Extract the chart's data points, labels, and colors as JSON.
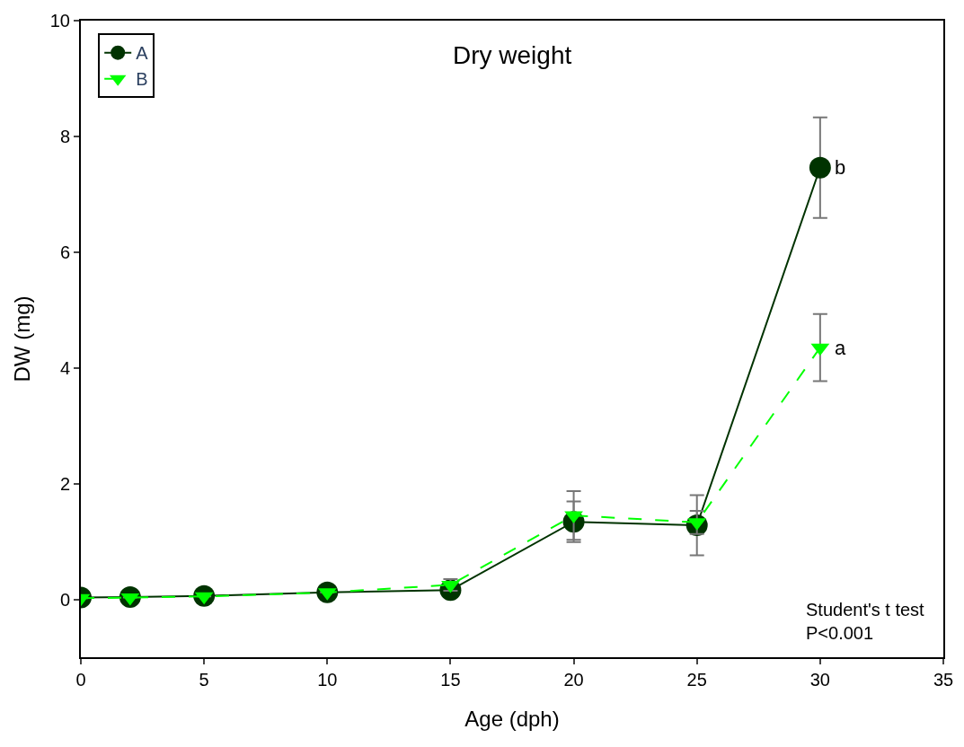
{
  "chart_data": {
    "type": "line",
    "title": "Dry weight",
    "xlabel": "Age (dph)",
    "ylabel": "DW (mg)",
    "x": [
      0,
      2,
      5,
      10,
      15,
      20,
      25,
      30
    ],
    "series": [
      {
        "name": "A",
        "color": "#003300",
        "marker": "circle",
        "line_style": "solid",
        "values": [
          0.03,
          0.04,
          0.06,
          0.12,
          0.16,
          1.34,
          1.28,
          7.46
        ],
        "errors": [
          null,
          null,
          null,
          null,
          null,
          0.35,
          0.52,
          0.87
        ]
      },
      {
        "name": "B",
        "color": "#00ff00",
        "marker": "triangle",
        "line_style": "dashed",
        "values": [
          0.02,
          0.03,
          0.05,
          0.12,
          0.25,
          1.45,
          1.33,
          4.35
        ],
        "errors": [
          null,
          null,
          null,
          null,
          0.1,
          0.42,
          0.2,
          0.58
        ]
      }
    ],
    "xlim": [
      0,
      35
    ],
    "xticks": [
      0,
      5,
      10,
      15,
      20,
      25,
      30,
      35
    ],
    "ylim": [
      -1,
      10
    ],
    "yticks": [
      0,
      2,
      4,
      6,
      8,
      10
    ],
    "legend": "top left",
    "annotations": [
      {
        "text": "b",
        "x": 30,
        "y": 7.46
      },
      {
        "text": "a",
        "x": 30,
        "y": 4.35
      },
      "Student's t test\nP<0.001"
    ]
  }
}
